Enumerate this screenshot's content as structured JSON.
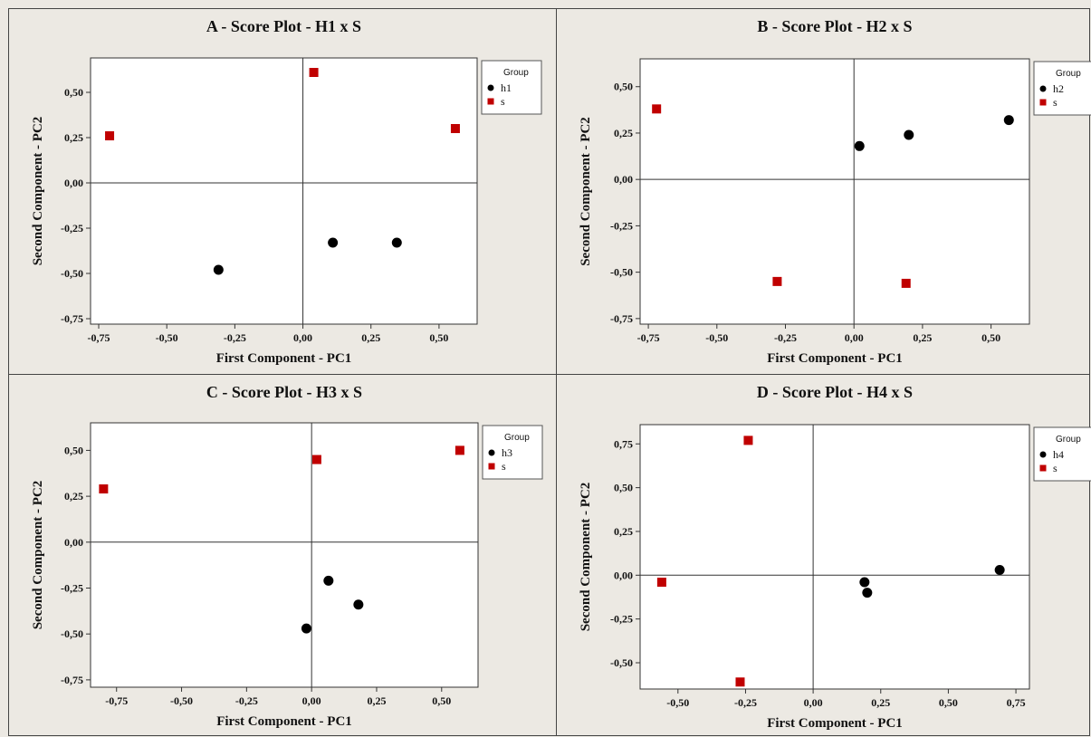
{
  "chart_data": [
    {
      "type": "scatter",
      "title": "A - Score Plot - H1 x S",
      "xlabel": "First Component - PC1",
      "ylabel": "Second Component - PC2",
      "xlim": [
        -0.78,
        0.64
      ],
      "ylim": [
        -0.78,
        0.69
      ],
      "xticks": [
        -0.75,
        -0.5,
        -0.25,
        0.0,
        0.25,
        0.5
      ],
      "yticks": [
        -0.75,
        -0.5,
        -0.25,
        0.0,
        0.25,
        0.5
      ],
      "xtick_labels": [
        "-0,75",
        "-0,50",
        "-0,25",
        "0,00",
        "0,25",
        "0,50"
      ],
      "ytick_labels": [
        "-0,75",
        "-0,50",
        "-0,25",
        "0,00",
        "0,25",
        "0,50"
      ],
      "legend": {
        "title": "Group",
        "position": "right"
      },
      "series": [
        {
          "name": "h1",
          "marker": "circle",
          "color": "#000000",
          "points": [
            [
              -0.31,
              -0.48
            ],
            [
              0.11,
              -0.33
            ],
            [
              0.345,
              -0.33
            ]
          ]
        },
        {
          "name": "s",
          "marker": "square",
          "color": "#c00000",
          "points": [
            [
              -0.71,
              0.26
            ],
            [
              0.04,
              0.61
            ],
            [
              0.56,
              0.3
            ]
          ]
        }
      ]
    },
    {
      "type": "scatter",
      "title": "B - Score Plot - H2 x S",
      "xlabel": "First Component - PC1",
      "ylabel": "Second Component - PC2",
      "xlim": [
        -0.78,
        0.64
      ],
      "ylim": [
        -0.78,
        0.65
      ],
      "xticks": [
        -0.75,
        -0.5,
        -0.25,
        0.0,
        0.25,
        0.5
      ],
      "yticks": [
        -0.75,
        -0.5,
        -0.25,
        0.0,
        0.25,
        0.5
      ],
      "xtick_labels": [
        "-0,75",
        "-0,50",
        "-0,25",
        "0,00",
        "0,25",
        "0,50"
      ],
      "ytick_labels": [
        "-0,75",
        "-0,50",
        "-0,25",
        "0,00",
        "0,25",
        "0,50"
      ],
      "legend": {
        "title": "Group",
        "position": "right"
      },
      "series": [
        {
          "name": "h2",
          "marker": "circle",
          "color": "#000000",
          "points": [
            [
              0.02,
              0.18
            ],
            [
              0.2,
              0.24
            ],
            [
              0.565,
              0.32
            ]
          ]
        },
        {
          "name": "s",
          "marker": "square",
          "color": "#c00000",
          "points": [
            [
              -0.72,
              0.38
            ],
            [
              -0.28,
              -0.55
            ],
            [
              0.19,
              -0.56
            ]
          ]
        }
      ]
    },
    {
      "type": "scatter",
      "title": "C - Score Plot - H3 x S",
      "xlabel": "First Component - PC1",
      "ylabel": "Second Component - PC2",
      "xlim": [
        -0.85,
        0.64
      ],
      "ylim": [
        -0.79,
        0.65
      ],
      "xticks": [
        -0.75,
        -0.5,
        -0.25,
        0.0,
        0.25,
        0.5
      ],
      "yticks": [
        -0.75,
        -0.5,
        -0.25,
        0.0,
        0.25,
        0.5
      ],
      "xtick_labels": [
        "-0,75",
        "-0,50",
        "-0,25",
        "0,00",
        "0,25",
        "0,50"
      ],
      "ytick_labels": [
        "-0,75",
        "-0,50",
        "-0,25",
        "0,00",
        "0,25",
        "0,50"
      ],
      "legend": {
        "title": "Group",
        "position": "right"
      },
      "series": [
        {
          "name": "h3",
          "marker": "circle",
          "color": "#000000",
          "points": [
            [
              -0.02,
              -0.47
            ],
            [
              0.065,
              -0.21
            ],
            [
              0.18,
              -0.34
            ]
          ]
        },
        {
          "name": "s",
          "marker": "square",
          "color": "#c00000",
          "points": [
            [
              -0.8,
              0.29
            ],
            [
              0.02,
              0.45
            ],
            [
              0.57,
              0.5
            ]
          ]
        }
      ]
    },
    {
      "type": "scatter",
      "title": "D - Score Plot - H4 x S",
      "xlabel": "First Component - PC1",
      "ylabel": "Second Component - PC2",
      "xlim": [
        -0.64,
        0.8
      ],
      "ylim": [
        -0.65,
        0.86
      ],
      "xticks": [
        -0.5,
        -0.25,
        0.0,
        0.25,
        0.5,
        0.75
      ],
      "yticks": [
        -0.5,
        -0.25,
        0.0,
        0.25,
        0.5,
        0.75
      ],
      "xtick_labels": [
        "-0,50",
        "-0,25",
        "0,00",
        "0,25",
        "0,50",
        "0,75"
      ],
      "ytick_labels": [
        "-0,50",
        "-0,25",
        "0,00",
        "0,25",
        "0,50",
        "0,75"
      ],
      "legend": {
        "title": "Group",
        "position": "right"
      },
      "series": [
        {
          "name": "h4",
          "marker": "circle",
          "color": "#000000",
          "points": [
            [
              0.19,
              -0.04
            ],
            [
              0.2,
              -0.1
            ],
            [
              0.69,
              0.03
            ]
          ]
        },
        {
          "name": "s",
          "marker": "square",
          "color": "#c00000",
          "points": [
            [
              -0.56,
              -0.04
            ],
            [
              -0.24,
              0.77
            ],
            [
              -0.27,
              -0.61
            ]
          ]
        }
      ]
    }
  ]
}
